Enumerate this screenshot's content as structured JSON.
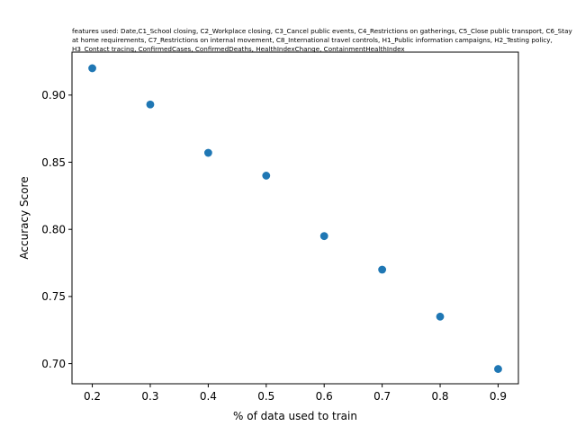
{
  "chart_data": {
    "type": "scatter",
    "title": "features used: Date,C1_School closing, C2_Workplace closing, C3_Cancel public events, C4_Restrictions on gatherings, C5_Close public transport, C6_Stay at home requirements, C7_Restrictions on internal movement, C8_International travel controls, H1_Public information campaigns, H2_Testing policy, H3_Contact tracing, ConfirmedCases, ConfirmedDeaths, HealthIndexChange, ContainmentHealthIndex",
    "xlabel": "% of data used to train",
    "ylabel": "Accuracy Score",
    "xlim": [
      0.165,
      0.935
    ],
    "ylim": [
      0.685,
      0.932
    ],
    "xticks": [
      0.2,
      0.3,
      0.4,
      0.5,
      0.6,
      0.7,
      0.8,
      0.9
    ],
    "xtick_labels": [
      "0.2",
      "0.3",
      "0.4",
      "0.5",
      "0.6",
      "0.7",
      "0.8",
      "0.9"
    ],
    "yticks": [
      0.7,
      0.75,
      0.8,
      0.85,
      0.9
    ],
    "ytick_labels": [
      "0.70",
      "0.75",
      "0.80",
      "0.85",
      "0.90"
    ],
    "grid": false,
    "marker_color": "#1f77b4",
    "series": [
      {
        "x": [
          0.2,
          0.3,
          0.4,
          0.5,
          0.6,
          0.7,
          0.8,
          0.9
        ],
        "y": [
          0.92,
          0.893,
          0.857,
          0.84,
          0.795,
          0.77,
          0.735,
          0.696
        ]
      }
    ]
  }
}
